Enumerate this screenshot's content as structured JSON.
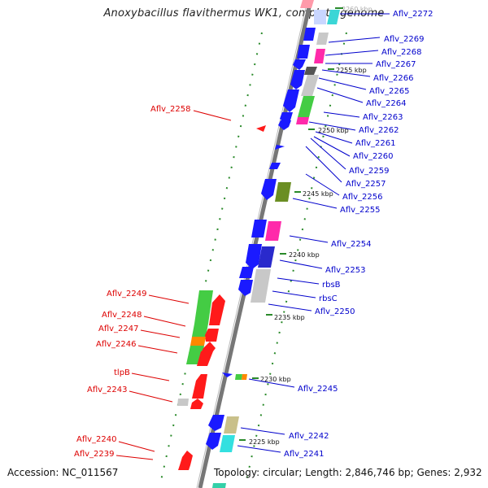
{
  "title": "Anoxybacillus flavithermus WK1, complete genome",
  "footer": {
    "accession": "Accession: NC_011567",
    "topology": "Topology: circular; Length: 2,846,746 bp; Genes: 2,932"
  },
  "colors": {
    "blue_label": "#0000cc",
    "red_label": "#dd0000",
    "backbone": "#888888",
    "tick_green": "#2a8a2a"
  },
  "kbp_marks": [
    "2260 kbp",
    "2255 kbp",
    "2250 kbp",
    "2245 kbp",
    "2240 kbp",
    "2235 kbp",
    "2230 kbp",
    "2225 kbp"
  ],
  "right_labels": [
    "Aflv_2272",
    "Aflv_2269",
    "Aflv_2268",
    "Aflv_2267",
    "Aflv_2266",
    "Aflv_2265",
    "Aflv_2264",
    "Aflv_2263",
    "Aflv_2262",
    "Aflv_2261",
    "Aflv_2260",
    "Aflv_2259",
    "Aflv_2257",
    "Aflv_2256",
    "Aflv_2255",
    "Aflv_2254",
    "Aflv_2253",
    "rbsB",
    "rbsC",
    "Aflv_2250",
    "Aflv_2245",
    "Aflv_2242",
    "Aflv_2241"
  ],
  "left_labels": [
    "Aflv_2258",
    "Aflv_2249",
    "Aflv_2248",
    "Aflv_2247",
    "Aflv_2246",
    "tlpB",
    "Aflv_2243",
    "Aflv_2240",
    "Aflv_2239"
  ]
}
